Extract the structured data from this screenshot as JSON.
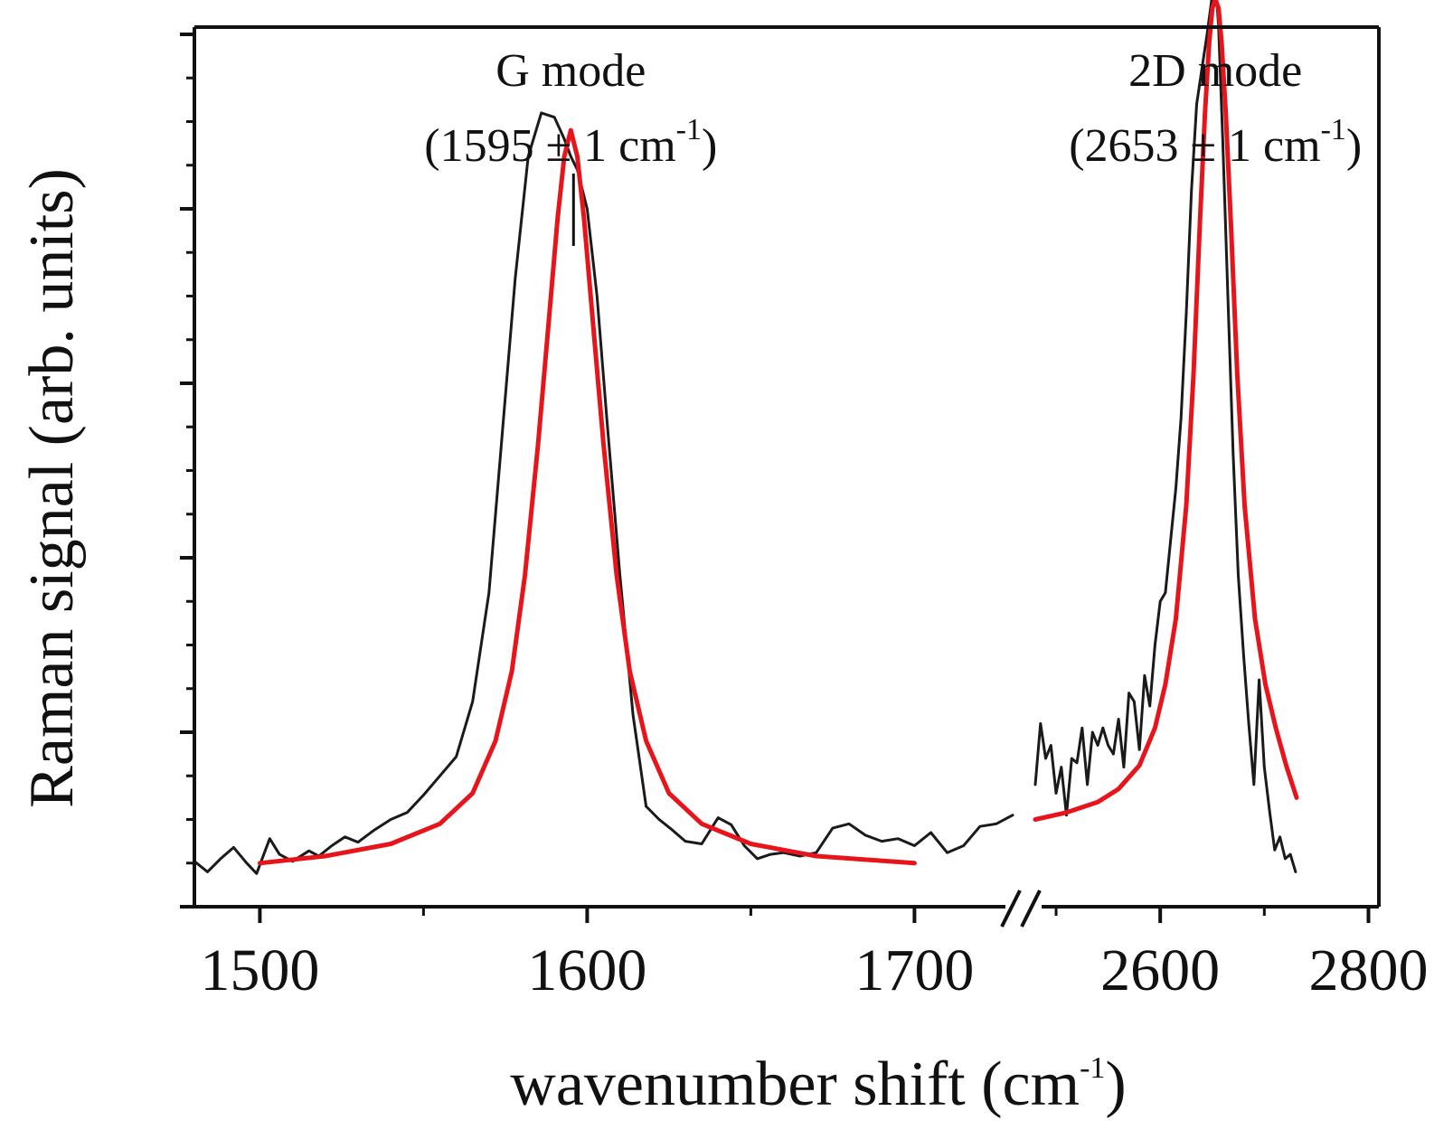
{
  "chart_data": {
    "type": "line",
    "xlabel": "wavenumber shift (cm",
    "xlabel_sup": "-1",
    "xlabel_end": ")",
    "ylabel": "Raman signal (arb. units)",
    "axis_break": true,
    "colors": {
      "data": "#1a1a1a",
      "fit": "#e8141c",
      "axis": "#111111"
    },
    "segments": [
      {
        "name": "G",
        "xlim": [
          1480,
          1730
        ],
        "ticks_major": [
          1500,
          1600,
          1700
        ],
        "ticks_minor": [
          1550,
          1650
        ]
      },
      {
        "name": "2D",
        "xlim": [
          2480,
          2810
        ],
        "ticks_major": [
          2600,
          2800
        ],
        "ticks_minor": [
          2500,
          2700
        ]
      }
    ],
    "ylim": [
      0,
      1000
    ],
    "yticks_major": [
      0,
      200,
      400,
      600,
      800,
      1000
    ],
    "annotations": [
      {
        "title": "G mode",
        "text": "(1595 ± 1 cm",
        "sup": "-1",
        "end": ")",
        "x": 1595,
        "segment": 0
      },
      {
        "title": "2D mode",
        "text": "(2653 ± 1 cm",
        "sup": "-1",
        "end": ")",
        "x": 2653,
        "segment": 1
      }
    ],
    "series": [
      {
        "name": "data_G",
        "segment": 0,
        "x": [
          1480,
          1484,
          1488,
          1492,
          1496,
          1499,
          1503,
          1506,
          1510,
          1515,
          1518,
          1522,
          1526,
          1530,
          1535,
          1540,
          1545,
          1550,
          1555,
          1560,
          1565,
          1570,
          1574,
          1578,
          1582,
          1586,
          1590,
          1593,
          1595,
          1597,
          1600,
          1603,
          1606,
          1610,
          1614,
          1618,
          1622,
          1626,
          1630,
          1635,
          1640,
          1644,
          1648,
          1652,
          1656,
          1660,
          1665,
          1670,
          1675,
          1680,
          1685,
          1690,
          1695,
          1700,
          1705,
          1710,
          1715,
          1720,
          1725,
          1730
        ],
        "y": [
          52,
          40,
          55,
          68,
          50,
          38,
          78,
          60,
          52,
          64,
          58,
          70,
          80,
          74,
          88,
          100,
          108,
          128,
          150,
          172,
          235,
          360,
          540,
          720,
          860,
          910,
          905,
          880,
          860,
          845,
          800,
          700,
          560,
          380,
          220,
          115,
          100,
          88,
          75,
          72,
          102,
          94,
          70,
          55,
          60,
          62,
          58,
          62,
          90,
          95,
          82,
          75,
          78,
          70,
          85,
          62,
          70,
          92,
          95,
          105
        ]
      },
      {
        "name": "fit_G",
        "segment": 0,
        "x": [
          1500,
          1520,
          1540,
          1555,
          1565,
          1572,
          1577,
          1581,
          1585,
          1588,
          1591,
          1593,
          1595,
          1597,
          1599,
          1602,
          1605,
          1609,
          1613,
          1618,
          1625,
          1635,
          1650,
          1670,
          1700
        ],
        "y": [
          50,
          58,
          72,
          95,
          130,
          190,
          270,
          380,
          530,
          660,
          790,
          860,
          890,
          860,
          790,
          660,
          530,
          380,
          270,
          190,
          130,
          95,
          72,
          58,
          50
        ]
      },
      {
        "name": "data_2D",
        "segment": 1,
        "x": [
          2480,
          2485,
          2490,
          2495,
          2500,
          2505,
          2510,
          2515,
          2520,
          2525,
          2530,
          2535,
          2540,
          2545,
          2550,
          2555,
          2560,
          2565,
          2570,
          2575,
          2580,
          2585,
          2590,
          2595,
          2600,
          2605,
          2610,
          2615,
          2620,
          2625,
          2630,
          2635,
          2640,
          2645,
          2650,
          2653,
          2656,
          2660,
          2665,
          2670,
          2675,
          2680,
          2685,
          2690,
          2695,
          2700,
          2705,
          2710,
          2715,
          2720,
          2725,
          2730
        ],
        "y": [
          140,
          210,
          170,
          185,
          130,
          160,
          105,
          170,
          165,
          205,
          140,
          200,
          185,
          205,
          185,
          175,
          215,
          160,
          245,
          235,
          180,
          265,
          230,
          300,
          350,
          360,
          420,
          480,
          560,
          680,
          820,
          920,
          960,
          1000,
          1045,
          1060,
          1010,
          880,
          700,
          520,
          380,
          290,
          210,
          140,
          260,
          160,
          110,
          65,
          80,
          55,
          60,
          40
        ]
      },
      {
        "name": "fit_2D",
        "segment": 1,
        "x": [
          2480,
          2510,
          2540,
          2560,
          2580,
          2595,
          2605,
          2615,
          2625,
          2632,
          2638,
          2643,
          2647,
          2650,
          2653,
          2656,
          2659,
          2663,
          2668,
          2674,
          2681,
          2691,
          2701,
          2711,
          2721,
          2731
        ],
        "y": [
          100,
          108,
          120,
          135,
          162,
          205,
          255,
          330,
          460,
          610,
          780,
          910,
          990,
          1030,
          1040,
          1030,
          990,
          910,
          780,
          610,
          460,
          330,
          255,
          205,
          162,
          125
        ]
      }
    ]
  }
}
